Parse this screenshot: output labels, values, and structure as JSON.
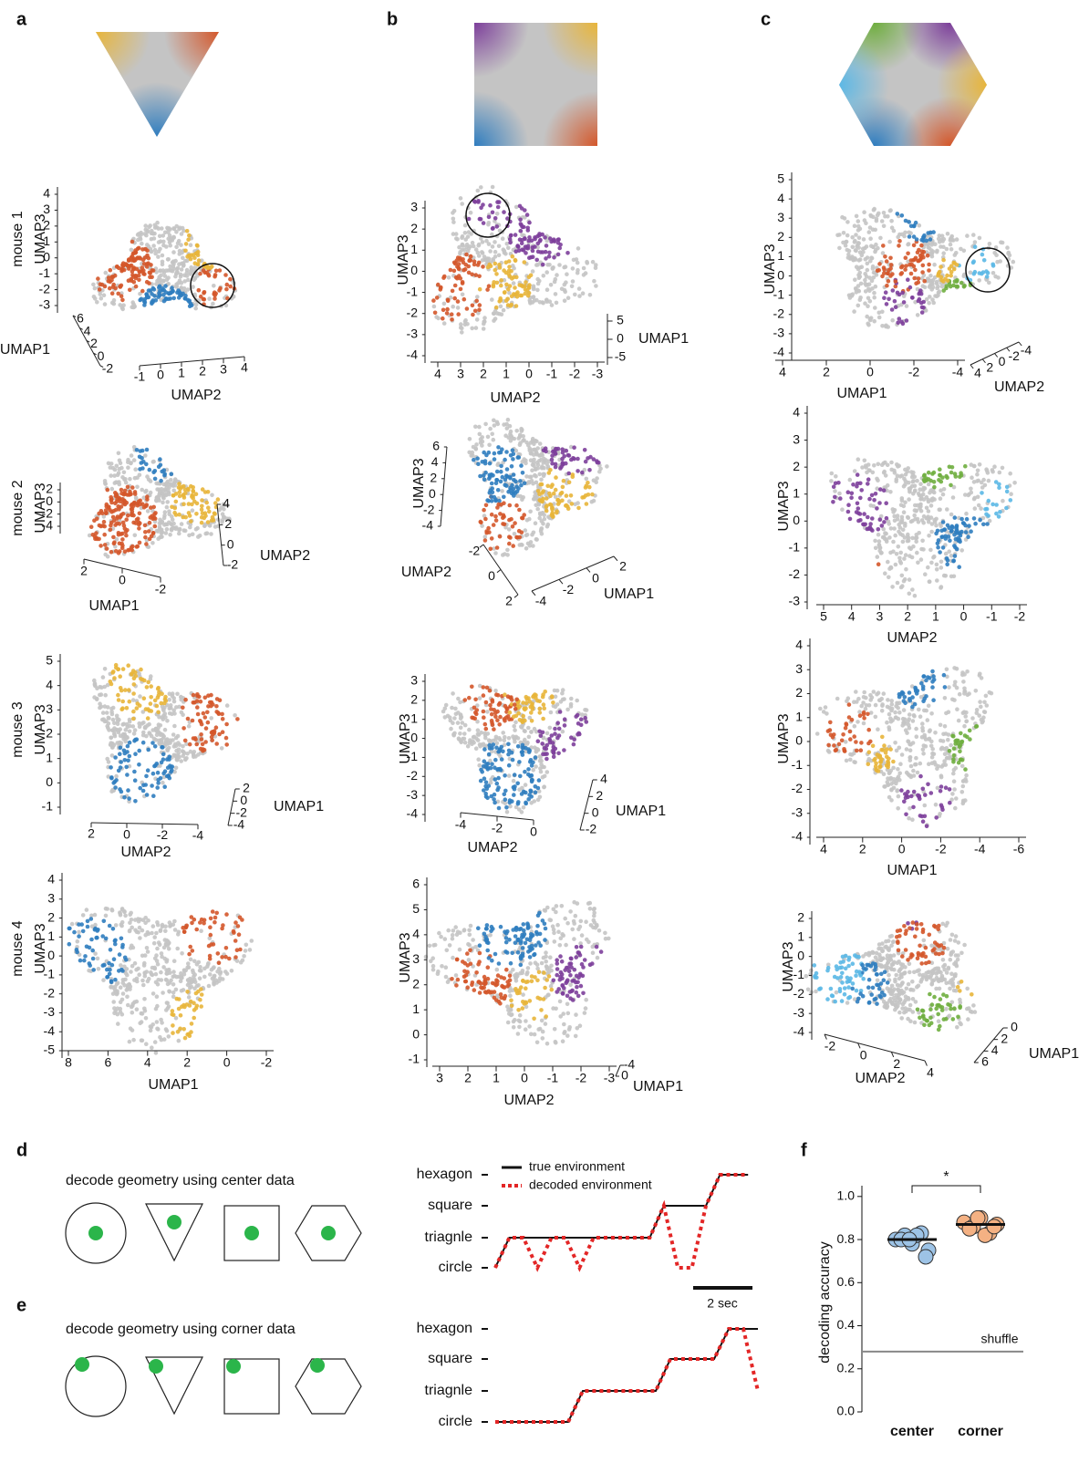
{
  "panels": [
    {
      "label": "a",
      "plots": [
        {
          "row_label": "mouse 1",
          "axes": [
            {
              "label": "UMAP3",
              "ticks": [
                4,
                3,
                2,
                1,
                0,
                -1,
                -2,
                -3
              ]
            },
            {
              "label": "UMAP2",
              "ticks": [
                -1,
                0,
                1,
                2,
                3,
                4
              ]
            },
            {
              "label": "UMAP1",
              "ticks": [
                6,
                4,
                2,
                0,
                -2
              ]
            }
          ]
        },
        {
          "row_label": "mouse 2",
          "axes": [
            {
              "label": "UMAP3",
              "ticks": [
                2,
                0,
                -2,
                -4
              ]
            },
            {
              "label": "UMAP1",
              "ticks": [
                2,
                0,
                -2
              ]
            },
            {
              "label": "UMAP2",
              "ticks": [
                4,
                2,
                0,
                -2
              ]
            }
          ]
        },
        {
          "row_label": "mouse 3",
          "axes": [
            {
              "label": "UMAP3",
              "ticks": [
                5,
                4,
                3,
                2,
                1,
                0,
                -1
              ]
            },
            {
              "label": "UMAP2",
              "ticks": [
                2,
                0,
                -2,
                -4
              ]
            },
            {
              "label": "UMAP1",
              "ticks": [
                2,
                0,
                -2,
                -4
              ]
            }
          ]
        },
        {
          "row_label": "mouse 4",
          "axes": [
            {
              "label": "UMAP3",
              "ticks": [
                4,
                3,
                2,
                1,
                0,
                -1,
                -2,
                -3,
                -4,
                -5
              ]
            },
            {
              "label": "UMAP1",
              "ticks": [
                8,
                6,
                4,
                2,
                0,
                -2
              ]
            }
          ]
        }
      ]
    },
    {
      "label": "b",
      "plots": [
        {
          "axes": [
            {
              "label": "UMAP3",
              "ticks": [
                3,
                2,
                1,
                0,
                -1,
                -2,
                -3,
                -4
              ]
            },
            {
              "label": "UMAP2",
              "ticks": [
                4,
                3,
                2,
                1,
                0,
                -1,
                -2,
                -3
              ]
            },
            {
              "label": "UMAP1",
              "ticks": [
                5,
                0,
                -5
              ]
            }
          ]
        },
        {
          "axes": [
            {
              "label": "UMAP3",
              "ticks": [
                6,
                4,
                2,
                0,
                -2,
                -4
              ]
            },
            {
              "label": "UMAP2",
              "ticks": [
                -2,
                0,
                2
              ]
            },
            {
              "label": "UMAP1",
              "ticks": [
                2,
                0,
                -2,
                -4
              ]
            }
          ]
        },
        {
          "axes": [
            {
              "label": "UMAP3",
              "ticks": [
                3,
                2,
                1,
                0,
                -1,
                -2,
                -3,
                -4
              ]
            },
            {
              "label": "UMAP2",
              "ticks": [
                -4,
                -2,
                0
              ]
            },
            {
              "label": "UMAP1",
              "ticks": [
                4,
                2,
                0,
                -2
              ]
            }
          ]
        },
        {
          "axes": [
            {
              "label": "UMAP3",
              "ticks": [
                6,
                5,
                4,
                3,
                2,
                1,
                0,
                -1
              ]
            },
            {
              "label": "UMAP2",
              "ticks": [
                3,
                2,
                1,
                0,
                -1,
                -2,
                -3
              ]
            },
            {
              "label": "UMAP1",
              "ticks": [
                -4,
                0
              ]
            }
          ]
        }
      ]
    },
    {
      "label": "c",
      "plots": [
        {
          "axes": [
            {
              "label": "UMAP3",
              "ticks": [
                5,
                4,
                3,
                2,
                1,
                0,
                -1,
                -2,
                -3,
                -4
              ]
            },
            {
              "label": "UMAP1",
              "ticks": [
                4,
                2,
                0,
                -2,
                -4
              ]
            },
            {
              "label": "UMAP2",
              "ticks": [
                4,
                2,
                0,
                -2,
                -4
              ]
            }
          ]
        },
        {
          "axes": [
            {
              "label": "UMAP3",
              "ticks": [
                4,
                3,
                2,
                1,
                0,
                -1,
                -2,
                -3
              ]
            },
            {
              "label": "UMAP2",
              "ticks": [
                5,
                4,
                3,
                2,
                1,
                0,
                -1,
                -2
              ]
            }
          ]
        },
        {
          "axes": [
            {
              "label": "UMAP3",
              "ticks": [
                4,
                3,
                2,
                1,
                0,
                -1,
                -2,
                -3,
                -4
              ]
            },
            {
              "label": "UMAP1",
              "ticks": [
                4,
                2,
                0,
                -2,
                -4,
                -6
              ]
            }
          ]
        },
        {
          "axes": [
            {
              "label": "UMAP3",
              "ticks": [
                2,
                1,
                0,
                -1,
                -2,
                -3,
                -4
              ]
            },
            {
              "label": "UMAP2",
              "ticks": [
                -2,
                0,
                2,
                4
              ]
            },
            {
              "label": "UMAP1",
              "ticks": [
                0,
                2,
                4,
                6
              ]
            }
          ]
        }
      ]
    }
  ],
  "d": {
    "label": "d",
    "title": "decode geometry using center data",
    "chart": {
      "type": "step",
      "y_categories": [
        "circle",
        "triagnle",
        "square",
        "hexagon"
      ],
      "series": [
        {
          "name": "true environment",
          "color": "#111111",
          "values": [
            "circle",
            "triagnle",
            "triagnle",
            "triagnle",
            "triagnle",
            "triagnle",
            "triagnle",
            "triagnle",
            "triagnle",
            "triagnle",
            "triagnle",
            "triagnle",
            "square",
            "square",
            "square",
            "square",
            "hexagon",
            "hexagon",
            "hexagon"
          ]
        },
        {
          "name": "decoded environment",
          "color": "#e32626",
          "values": [
            "circle",
            "triagnle",
            "triagnle",
            "circle",
            "triagnle",
            "triagnle",
            "circle",
            "triagnle",
            "triagnle",
            "triagnle",
            "triagnle",
            "triagnle",
            "square",
            "circle",
            "circle",
            "square",
            "hexagon",
            "hexagon",
            "hexagon"
          ]
        }
      ],
      "scale_bar": "2 sec"
    }
  },
  "e": {
    "label": "e",
    "title": "decode geometry using corner data",
    "chart": {
      "type": "step",
      "y_categories": [
        "circle",
        "triagnle",
        "square",
        "hexagon"
      ],
      "series": [
        {
          "color": "#111111",
          "values": [
            "circle",
            "circle",
            "circle",
            "circle",
            "circle",
            "circle",
            "triagnle",
            "triagnle",
            "triagnle",
            "triagnle",
            "triagnle",
            "triagnle",
            "square",
            "square",
            "square",
            "square",
            "hexagon",
            "hexagon",
            "hexagon"
          ]
        },
        {
          "color": "#e32626",
          "values": [
            "circle",
            "circle",
            "circle",
            "circle",
            "circle",
            "circle",
            "triagnle",
            "triagnle",
            "triagnle",
            "triagnle",
            "triagnle",
            "triagnle",
            "square",
            "square",
            "square",
            "square",
            "hexagon",
            "hexagon",
            "triagnle"
          ]
        }
      ]
    }
  },
  "f": {
    "label": "f",
    "chart": {
      "type": "strip",
      "ylabel": "decoding accuracy",
      "categories": [
        "center",
        "corner"
      ],
      "ylim": [
        0,
        1.05
      ],
      "yticks": [
        {
          "value": 0,
          "label": "0.0"
        },
        {
          "value": 0.2,
          "label": "0.2"
        },
        {
          "value": 0.4,
          "label": "0.4"
        },
        {
          "value": 0.6,
          "label": "0.6"
        },
        {
          "value": 0.8,
          "label": "0.8"
        },
        {
          "value": 1,
          "label": "1.0"
        }
      ],
      "groups": [
        {
          "color": "#9dc3e6",
          "values": [
            0.8,
            0.82,
            0.78,
            0.83,
            0.75,
            0.8,
            0.82,
            0.72,
            0.8
          ],
          "mean": 0.8
        },
        {
          "color": "#f4b183",
          "values": [
            0.88,
            0.86,
            0.9,
            0.83,
            0.87,
            0.85,
            0.82,
            0.86,
            0.9
          ],
          "mean": 0.87
        }
      ],
      "shuffle": {
        "label": "shuffle",
        "value": 0.28
      },
      "significance": "*"
    }
  }
}
